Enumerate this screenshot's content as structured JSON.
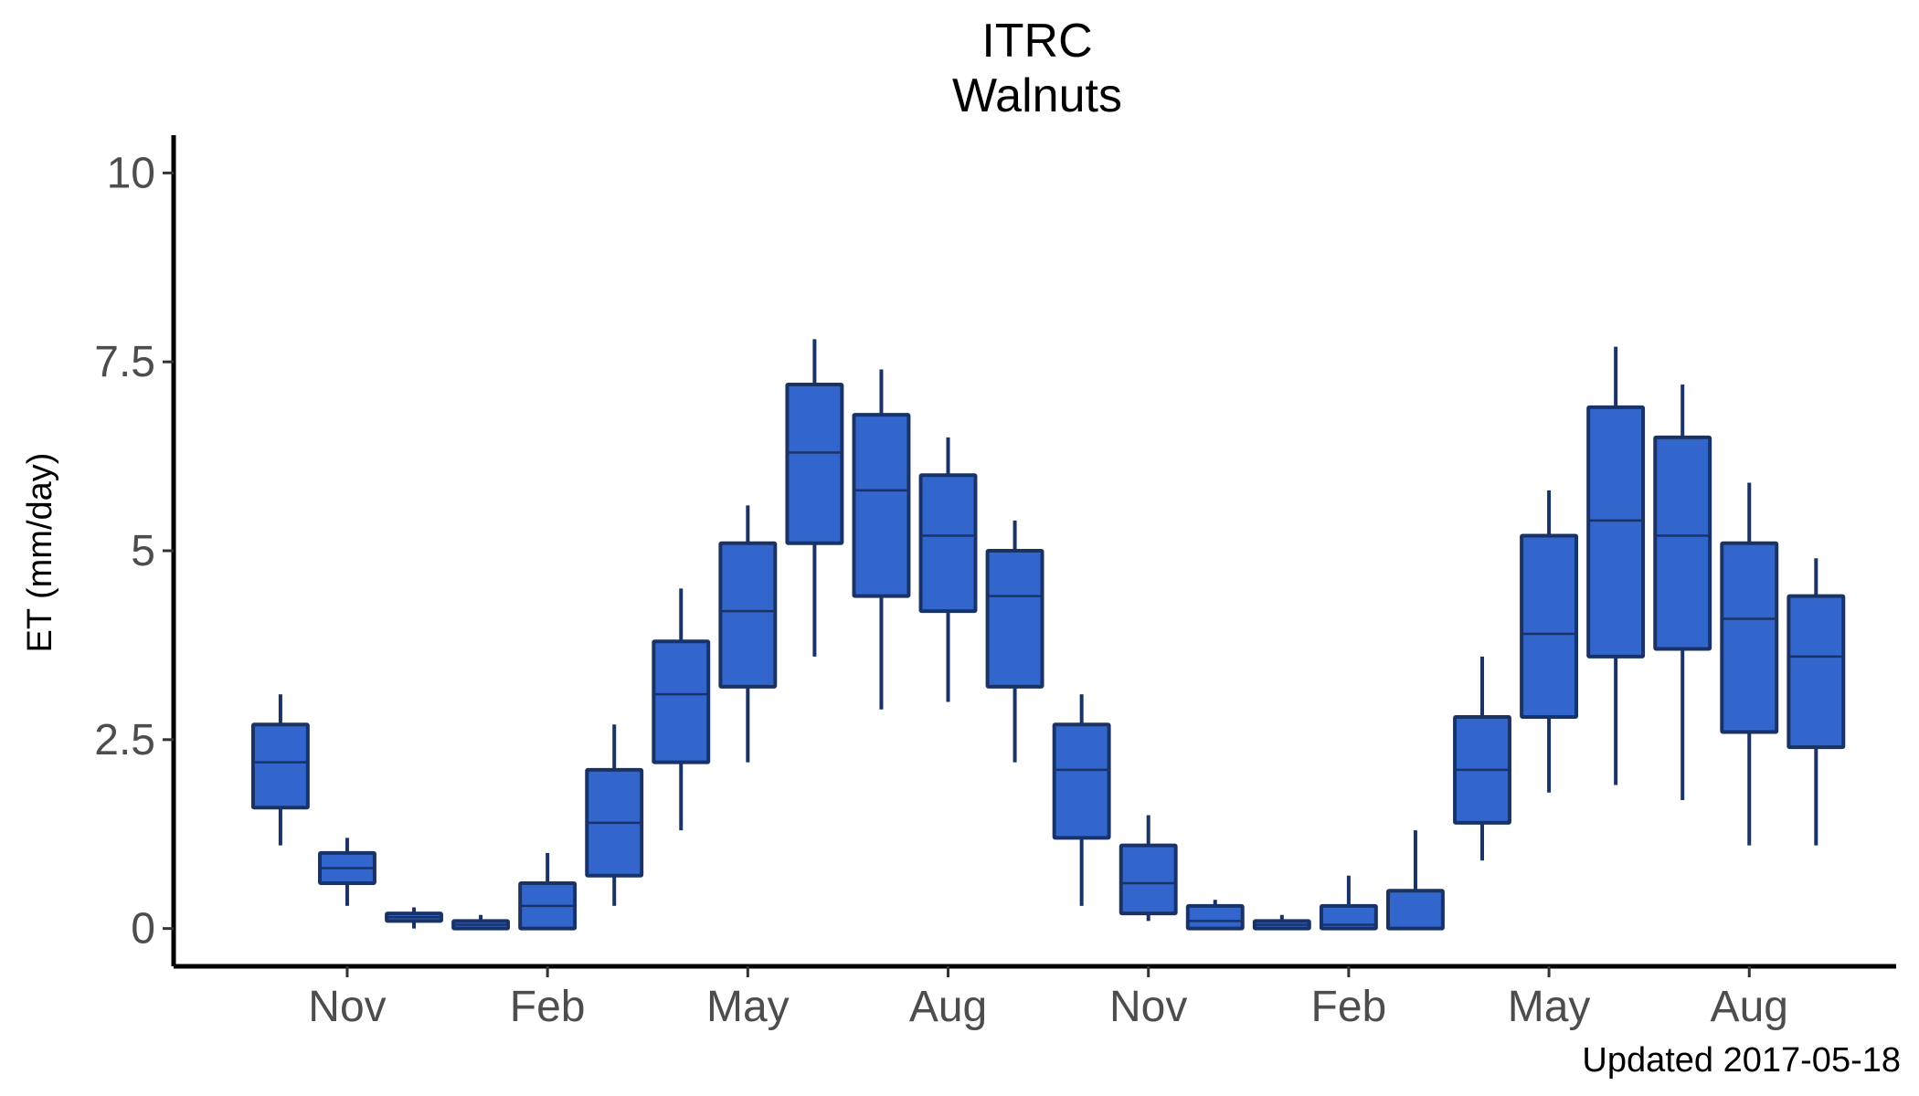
{
  "chart_data": {
    "type": "boxplot",
    "title": "ITRC",
    "subtitle": "Walnuts",
    "ylabel": "ET (mm/day)",
    "xlabel": "",
    "caption": "Updated  2017-05-18",
    "ylim": [
      -0.5,
      10.5
    ],
    "yticks": [
      {
        "value": 0,
        "label": "0"
      },
      {
        "value": 2.5,
        "label": "2.5"
      },
      {
        "value": 5,
        "label": "5"
      },
      {
        "value": 7.5,
        "label": "7.5"
      },
      {
        "value": 10,
        "label": "10"
      }
    ],
    "xticks": [
      {
        "position": 2,
        "label": "Nov"
      },
      {
        "position": 5,
        "label": "Feb"
      },
      {
        "position": 8,
        "label": "May"
      },
      {
        "position": 11,
        "label": "Aug"
      },
      {
        "position": 14,
        "label": "Nov"
      },
      {
        "position": 17,
        "label": "Feb"
      },
      {
        "position": 20,
        "label": "May"
      },
      {
        "position": 23,
        "label": "Aug"
      }
    ],
    "xlim": [
      -0.6,
      25.2
    ],
    "grid": false,
    "legend": "none",
    "colors": {
      "fill": "#3366cc",
      "stroke": "#1a3366",
      "axis": "#000000"
    },
    "boxes": [
      {
        "position": 1,
        "min": 1.1,
        "q1": 1.6,
        "median": 2.2,
        "q3": 2.7,
        "max": 3.1
      },
      {
        "position": 2,
        "min": 0.3,
        "q1": 0.6,
        "median": 0.8,
        "q3": 1.0,
        "max": 1.2
      },
      {
        "position": 3,
        "min": 0.0,
        "q1": 0.1,
        "median": 0.15,
        "q3": 0.2,
        "max": 0.28
      },
      {
        "position": 4,
        "min": 0.0,
        "q1": 0.0,
        "median": 0.05,
        "q3": 0.1,
        "max": 0.18
      },
      {
        "position": 5,
        "min": 0.0,
        "q1": 0.0,
        "median": 0.3,
        "q3": 0.6,
        "max": 1.0
      },
      {
        "position": 6,
        "min": 0.3,
        "q1": 0.7,
        "median": 1.4,
        "q3": 2.1,
        "max": 2.7
      },
      {
        "position": 7,
        "min": 1.3,
        "q1": 2.2,
        "median": 3.1,
        "q3": 3.8,
        "max": 4.5
      },
      {
        "position": 8,
        "min": 2.2,
        "q1": 3.2,
        "median": 4.2,
        "q3": 5.1,
        "max": 5.6
      },
      {
        "position": 9,
        "min": 3.6,
        "q1": 5.1,
        "median": 6.3,
        "q3": 7.2,
        "max": 7.8
      },
      {
        "position": 10,
        "min": 2.9,
        "q1": 4.4,
        "median": 5.8,
        "q3": 6.8,
        "max": 7.4
      },
      {
        "position": 11,
        "min": 3.0,
        "q1": 4.2,
        "median": 5.2,
        "q3": 6.0,
        "max": 6.5
      },
      {
        "position": 12,
        "min": 2.2,
        "q1": 3.2,
        "median": 4.4,
        "q3": 5.0,
        "max": 5.4
      },
      {
        "position": 13,
        "min": 0.3,
        "q1": 1.2,
        "median": 2.1,
        "q3": 2.7,
        "max": 3.1
      },
      {
        "position": 14,
        "min": 0.1,
        "q1": 0.2,
        "median": 0.6,
        "q3": 1.1,
        "max": 1.5
      },
      {
        "position": 15,
        "min": 0.0,
        "q1": 0.0,
        "median": 0.1,
        "q3": 0.3,
        "max": 0.38
      },
      {
        "position": 16,
        "min": 0.0,
        "q1": 0.0,
        "median": 0.05,
        "q3": 0.1,
        "max": 0.18
      },
      {
        "position": 17,
        "min": 0.0,
        "q1": 0.0,
        "median": 0.05,
        "q3": 0.3,
        "max": 0.7
      },
      {
        "position": 18,
        "min": 0.0,
        "q1": 0.0,
        "median": 0.0,
        "q3": 0.5,
        "max": 1.3
      },
      {
        "position": 19,
        "min": 0.9,
        "q1": 1.4,
        "median": 2.1,
        "q3": 2.8,
        "max": 3.6
      },
      {
        "position": 20,
        "min": 1.8,
        "q1": 2.8,
        "median": 3.9,
        "q3": 5.2,
        "max": 5.8
      },
      {
        "position": 21,
        "min": 1.9,
        "q1": 3.6,
        "median": 5.4,
        "q3": 6.9,
        "max": 7.7
      },
      {
        "position": 22,
        "min": 1.7,
        "q1": 3.7,
        "median": 5.2,
        "q3": 6.5,
        "max": 7.2
      },
      {
        "position": 23,
        "min": 1.1,
        "q1": 2.6,
        "median": 4.1,
        "q3": 5.1,
        "max": 5.9
      },
      {
        "position": 24,
        "min": 1.1,
        "q1": 2.4,
        "median": 3.6,
        "q3": 4.4,
        "max": 4.9
      }
    ]
  }
}
